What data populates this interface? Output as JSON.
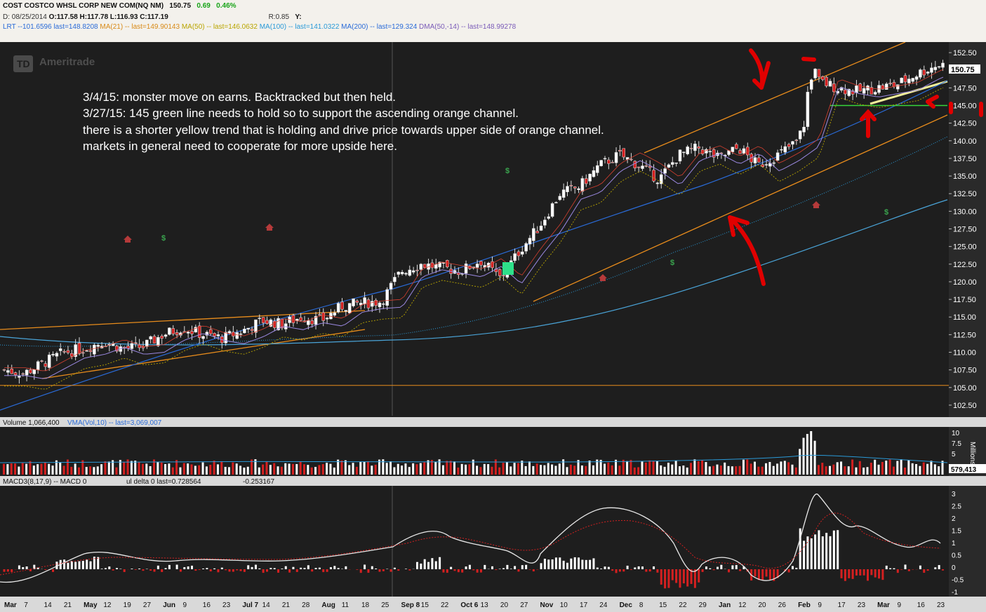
{
  "header": {
    "title": "COST COSTCO WHSL CORP NEW COM(NQ NM)",
    "last": "150.75",
    "change": "0.69",
    "change_pct": "0.46%",
    "date_line": "D: 08/25/2014",
    "o": "O:117.58",
    "h": "H:117.78",
    "l": "L:116.93",
    "c": "C:117.19",
    "r": "R:0.85",
    "y": "Y:",
    "studies": [
      {
        "text": "LRT --101.6596 last=148.8208",
        "color": "#2a6bd8"
      },
      {
        "text": "MA(21) -- last=149.90143",
        "color": "#d88a18"
      },
      {
        "text": "MA(50) -- last=146.0632",
        "color": "#b9a500"
      },
      {
        "text": "MA(100) -- last=141.0322",
        "color": "#2a9ad8"
      },
      {
        "text": "MA(200) -- last=129.324",
        "color": "#2a6bd8"
      },
      {
        "text": "DMA(50,-14) -- last=148.99278",
        "color": "#7a5bb8"
      }
    ]
  },
  "watermark": "Ameritrade",
  "annotation": [
    "3/4/15: monster move on earns. Backtracked but then held.",
    "3/27/15: 145 green line needs to hold so to support the ascending orange channel.",
    "there is a shorter yellow trend that is holding and drive price towards upper side of orange channel.",
    "markets in general need to cooperate for more upside here."
  ],
  "price_label": "150.75",
  "volume_panel": {
    "label": "Volume 1,066,400",
    "study": "VMA(Vol,10) -- last=3,069,007",
    "axis_ticks": [
      "10",
      "7.5",
      "5"
    ],
    "unit": "Millions",
    "last_label": "579,413"
  },
  "macd_panel": {
    "label": "MACD3(8,17,9) -- MACD 0",
    "label_rest": "ul delta 0 last=0.728564",
    "label_end": "-0.253167",
    "axis_ticks": [
      "3",
      "2.5",
      "2",
      "1.5",
      "1",
      "0.5",
      "0",
      "-0.5",
      "-1"
    ]
  },
  "x_axis_labels": [
    "Mar",
    "7",
    "14",
    "21",
    "May",
    "12",
    "19",
    "27",
    "Jun",
    "9",
    "16",
    "23",
    "Jul 7",
    "14",
    "21",
    "28",
    "Aug",
    "11",
    "18",
    "25",
    "Sep 8",
    "15",
    "22",
    "Oct 6",
    "13",
    "20",
    "27",
    "Nov",
    "10",
    "17",
    "24",
    "Dec",
    "8",
    "15",
    "22",
    "29",
    "Jan",
    "12",
    "20",
    "26",
    "Feb",
    "9",
    "17",
    "23",
    "Mar",
    "9",
    "16",
    "23"
  ],
  "chart_data": {
    "type": "candlestick",
    "y_axis_ticks": [
      152.5,
      150.0,
      147.5,
      145.0,
      142.5,
      140.0,
      137.5,
      135.0,
      132.5,
      130.0,
      127.5,
      125.0,
      122.5,
      120.0,
      117.5,
      115.0,
      112.5,
      110.0,
      107.5,
      105.0,
      102.5
    ],
    "ylim": [
      101.0,
      154.0
    ],
    "last_price": 150.75,
    "horizontal_lines": [
      {
        "value": 105.3,
        "color": "#e88c1c"
      }
    ],
    "support_line": {
      "value": 145.0,
      "color": "#37d53a"
    },
    "close_series": [
      {
        "x": "Mar",
        "y": 107.5
      },
      {
        "x": "7",
        "y": 107.0
      },
      {
        "x": "14",
        "y": 108.5
      },
      {
        "x": "21",
        "y": 110.0
      },
      {
        "x": "May",
        "y": 110.5
      },
      {
        "x": "12",
        "y": 111.5
      },
      {
        "x": "19",
        "y": 110.5
      },
      {
        "x": "27",
        "y": 110.8
      },
      {
        "x": "Jun",
        "y": 112.5
      },
      {
        "x": "9",
        "y": 113.5
      },
      {
        "x": "16",
        "y": 112.5
      },
      {
        "x": "23",
        "y": 112.0
      },
      {
        "x": "Jul 7",
        "y": 113.0
      },
      {
        "x": "14",
        "y": 114.5
      },
      {
        "x": "21",
        "y": 114.0
      },
      {
        "x": "28",
        "y": 115.0
      },
      {
        "x": "Aug",
        "y": 114.5
      },
      {
        "x": "11",
        "y": 116.5
      },
      {
        "x": "18",
        "y": 117.0
      },
      {
        "x": "25",
        "y": 117.2
      },
      {
        "x": "Sep 8",
        "y": 121.5
      },
      {
        "x": "15",
        "y": 122.5
      },
      {
        "x": "22",
        "y": 122.0
      },
      {
        "x": "Oct 6",
        "y": 121.5
      },
      {
        "x": "13",
        "y": 123.0
      },
      {
        "x": "20",
        "y": 120.5
      },
      {
        "x": "27",
        "y": 124.5
      },
      {
        "x": "Nov",
        "y": 128.0
      },
      {
        "x": "10",
        "y": 132.5
      },
      {
        "x": "17",
        "y": 133.5
      },
      {
        "x": "24",
        "y": 136.5
      },
      {
        "x": "Dec",
        "y": 138.0
      },
      {
        "x": "8",
        "y": 136.5
      },
      {
        "x": "15",
        "y": 134.5
      },
      {
        "x": "22",
        "y": 138.0
      },
      {
        "x": "29",
        "y": 139.0
      },
      {
        "x": "Jan",
        "y": 137.5
      },
      {
        "x": "12",
        "y": 139.0
      },
      {
        "x": "20",
        "y": 136.5
      },
      {
        "x": "26",
        "y": 138.0
      },
      {
        "x": "Feb",
        "y": 140.0
      },
      {
        "x": "9",
        "y": 148.5
      },
      {
        "x": "17",
        "y": 147.5
      },
      {
        "x": "23",
        "y": 147.0
      },
      {
        "x": "Mar",
        "y": 147.5
      },
      {
        "x": "9",
        "y": 148.0
      },
      {
        "x": "16",
        "y": 149.5
      },
      {
        "x": "23",
        "y": 150.75
      }
    ]
  }
}
